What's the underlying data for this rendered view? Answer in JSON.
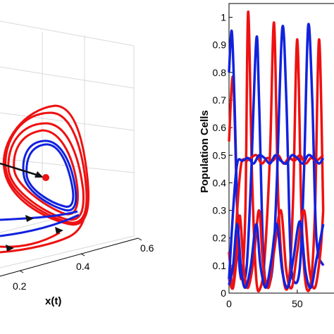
{
  "colors": {
    "series_red": "#ee1111",
    "series_blue": "#1122dd",
    "grid": "#d9d9d9",
    "axis": "#000000",
    "arrow": "#111111"
  },
  "chart_data": [
    {
      "type": "line",
      "projection": "3d",
      "xlabel": "x(t)",
      "x_ticks": [
        "0.2",
        "0.4",
        "0.6"
      ],
      "grid": true,
      "equilibrium_marker": true,
      "series": [
        {
          "color": "red",
          "role": "trajectory spiralling to limit cycle"
        },
        {
          "color": "blue",
          "role": "trajectory converging to limit cycle"
        }
      ]
    },
    {
      "type": "line",
      "ylabel": "Population Cells",
      "ylim": [
        0,
        1.05
      ],
      "y_ticks": [
        "0",
        "0.1",
        "0.2",
        "0.3",
        "0.4",
        "0.5",
        "0.6",
        "0.7",
        "0.8",
        "0.9",
        "1"
      ],
      "x_ticks": [
        "0",
        "50"
      ],
      "xlim": [
        0,
        80
      ],
      "series": [
        {
          "color": "red",
          "component": "peak",
          "values": [
            [
              0,
              0.55
            ],
            [
              3,
              0.78
            ],
            [
              6,
              0.3
            ],
            [
              9,
              0.05
            ],
            [
              12,
              0.3
            ],
            [
              14,
              1.02
            ],
            [
              17,
              0.4
            ],
            [
              20,
              0.05
            ],
            [
              23,
              0.02
            ],
            [
              26,
              0.12
            ],
            [
              30,
              0.5
            ],
            [
              33,
              0.98
            ],
            [
              36,
              0.35
            ],
            [
              40,
              0.05
            ],
            [
              44,
              0.05
            ],
            [
              47,
              0.35
            ],
            [
              50,
              0.92
            ],
            [
              53,
              0.3
            ],
            [
              56,
              0.04
            ],
            [
              60,
              0.04
            ],
            [
              63,
              0.3
            ],
            [
              66,
              0.92
            ],
            [
              69,
              0.3
            ]
          ]
        },
        {
          "color": "blue",
          "component": "peak",
          "values": [
            [
              0,
              0.8
            ],
            [
              2,
              0.95
            ],
            [
              4,
              0.7
            ],
            [
              7,
              0.15
            ],
            [
              10,
              0.05
            ],
            [
              13,
              0.1
            ],
            [
              16,
              0.4
            ],
            [
              20,
              0.92
            ],
            [
              22,
              0.7
            ],
            [
              25,
              0.15
            ],
            [
              28,
              0.03
            ],
            [
              32,
              0.1
            ],
            [
              35,
              0.4
            ],
            [
              39,
              0.96
            ],
            [
              42,
              0.7
            ],
            [
              45,
              0.15
            ],
            [
              48,
              0.04
            ],
            [
              52,
              0.1
            ],
            [
              55,
              0.45
            ],
            [
              58,
              0.97
            ],
            [
              61,
              0.7
            ],
            [
              64,
              0.2
            ],
            [
              69,
              0.1
            ]
          ]
        },
        {
          "color": "red",
          "component": "middle",
          "values": [
            [
              0,
              0.15
            ],
            [
              3,
              0.02
            ],
            [
              6,
              0.3
            ],
            [
              9,
              0.47
            ],
            [
              13,
              0.48
            ],
            [
              16,
              0.49
            ],
            [
              20,
              0.5
            ],
            [
              24,
              0.47
            ],
            [
              28,
              0.49
            ],
            [
              32,
              0.48
            ],
            [
              36,
              0.5
            ],
            [
              40,
              0.47
            ],
            [
              44,
              0.49
            ],
            [
              48,
              0.48
            ],
            [
              52,
              0.5
            ],
            [
              56,
              0.47
            ],
            [
              60,
              0.49
            ],
            [
              64,
              0.48
            ],
            [
              69,
              0.5
            ]
          ]
        },
        {
          "color": "blue",
          "component": "middle",
          "values": [
            [
              0,
              0.05
            ],
            [
              3,
              0.3
            ],
            [
              6,
              0.47
            ],
            [
              10,
              0.48
            ],
            [
              14,
              0.49
            ],
            [
              18,
              0.47
            ],
            [
              22,
              0.5
            ],
            [
              26,
              0.49
            ],
            [
              30,
              0.47
            ],
            [
              34,
              0.5
            ],
            [
              38,
              0.48
            ],
            [
              42,
              0.47
            ],
            [
              46,
              0.5
            ],
            [
              50,
              0.49
            ],
            [
              54,
              0.47
            ],
            [
              58,
              0.5
            ],
            [
              62,
              0.49
            ],
            [
              66,
              0.47
            ],
            [
              69,
              0.49
            ]
          ]
        },
        {
          "color": "red",
          "component": "low",
          "values": [
            [
              0,
              0.05
            ],
            [
              3,
              0.02
            ],
            [
              6,
              0.15
            ],
            [
              8,
              0.28
            ],
            [
              11,
              0.08
            ],
            [
              14,
              0.02
            ],
            [
              18,
              0.12
            ],
            [
              22,
              0.3
            ],
            [
              25,
              0.1
            ],
            [
              29,
              0.02
            ],
            [
              33,
              0.15
            ],
            [
              38,
              0.3
            ],
            [
              42,
              0.08
            ],
            [
              46,
              0.02
            ],
            [
              50,
              0.15
            ],
            [
              55,
              0.3
            ],
            [
              59,
              0.08
            ],
            [
              63,
              0.02
            ],
            [
              67,
              0.15
            ],
            [
              69,
              0.3
            ]
          ]
        },
        {
          "color": "blue",
          "component": "low",
          "values": [
            [
              0,
              0.03
            ],
            [
              3,
              0.1
            ],
            [
              6,
              0.25
            ],
            [
              9,
              0.08
            ],
            [
              12,
              0.02
            ],
            [
              16,
              0.1
            ],
            [
              20,
              0.25
            ],
            [
              23,
              0.1
            ],
            [
              27,
              0.02
            ],
            [
              31,
              0.12
            ],
            [
              35,
              0.25
            ],
            [
              39,
              0.08
            ],
            [
              43,
              0.02
            ],
            [
              47,
              0.12
            ],
            [
              52,
              0.26
            ],
            [
              56,
              0.08
            ],
            [
              60,
              0.02
            ],
            [
              64,
              0.12
            ],
            [
              69,
              0.25
            ]
          ]
        }
      ]
    }
  ]
}
